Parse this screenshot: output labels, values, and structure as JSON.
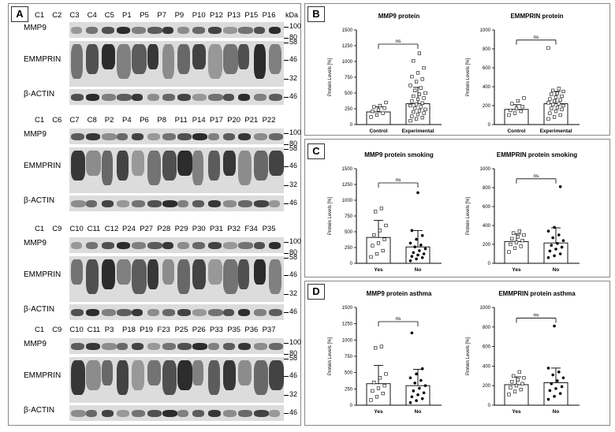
{
  "panels": {
    "a": "A",
    "b": "B",
    "c": "C",
    "d": "D"
  },
  "western_blot": {
    "kda_label": "kDa",
    "blocks": [
      {
        "lanes": [
          "C1",
          "C2",
          "C3",
          "C4",
          "C5",
          "P1",
          "P5",
          "P7",
          "P9",
          "P10",
          "P12",
          "P13",
          "P15",
          "P16"
        ],
        "rows": [
          {
            "label": "MMP9",
            "markers": [
              "100",
              "80"
            ]
          },
          {
            "label": "EMMPRIN",
            "markers": [
              "58",
              "46",
              "32"
            ]
          },
          {
            "label": "β-ACTIN",
            "markers": [
              "46"
            ]
          }
        ]
      },
      {
        "lanes": [
          "C1",
          "C6",
          "C7",
          "C8",
          "P2",
          "P4",
          "P6",
          "P8",
          "P11",
          "P14",
          "P17",
          "P20",
          "P21",
          "P22"
        ],
        "rows": [
          {
            "label": "MMP9",
            "markers": [
              "100",
              "80"
            ]
          },
          {
            "label": "EMMPRIN",
            "markers": [
              "58",
              "46",
              "32"
            ]
          },
          {
            "label": "β-ACTIN",
            "markers": [
              "46"
            ]
          }
        ]
      },
      {
        "lanes": [
          "C1",
          "C9",
          "C10",
          "C11",
          "C12",
          "P24",
          "P27",
          "P28",
          "P29",
          "P30",
          "P31",
          "P32",
          "F34",
          "P35"
        ],
        "rows": [
          {
            "label": "MMP9",
            "markers": [
              "100",
              "80"
            ]
          },
          {
            "label": "EMMPRIN",
            "markers": [
              "58",
              "46",
              "32"
            ]
          },
          {
            "label": "β-ACTIN",
            "markers": [
              "46"
            ]
          }
        ]
      },
      {
        "lanes": [
          "C1",
          "C9",
          "C10",
          "C11",
          "P3",
          "P18",
          "P19",
          "F23",
          "P25",
          "P26",
          "P33",
          "P35",
          "P36",
          "P37"
        ],
        "rows": [
          {
            "label": "MMP9",
            "markers": [
              "100",
              "80"
            ]
          },
          {
            "label": "EMMPRIN",
            "markers": [
              "58",
              "46",
              "32"
            ]
          },
          {
            "label": "β-ACTIN",
            "markers": [
              "46"
            ]
          }
        ]
      }
    ]
  },
  "chart_data": [
    {
      "id": "b1",
      "type": "bar",
      "title": "MMP9 protein",
      "ylabel": "Protein Levels [%]",
      "ylim": [
        0,
        1500
      ],
      "yticks": [
        0,
        250,
        500,
        750,
        1000,
        1250,
        1500
      ],
      "categories": [
        "Control",
        "Experimental"
      ],
      "values": [
        200,
        330
      ],
      "errors": [
        80,
        260
      ],
      "significance": "ns",
      "points": [
        [
          120,
          150,
          180,
          210,
          230,
          260,
          280,
          300,
          350
        ],
        [
          60,
          90,
          110,
          130,
          160,
          180,
          200,
          220,
          240,
          260,
          280,
          300,
          320,
          340,
          370,
          400,
          420,
          450,
          480,
          500,
          540,
          580,
          620,
          680,
          720,
          760,
          820,
          900,
          1010,
          1130
        ]
      ]
    },
    {
      "id": "b2",
      "type": "bar",
      "title": "EMMPRIN protein",
      "ylabel": "Protein Levels [%]",
      "ylim": [
        0,
        1000
      ],
      "yticks": [
        0,
        200,
        400,
        600,
        800,
        1000
      ],
      "categories": [
        "Control",
        "Experimental"
      ],
      "values": [
        160,
        220
      ],
      "errors": [
        50,
        130
      ],
      "significance": "ns",
      "points": [
        [
          100,
          120,
          140,
          150,
          170,
          190,
          220,
          250,
          280
        ],
        [
          60,
          80,
          100,
          120,
          140,
          160,
          170,
          180,
          200,
          210,
          220,
          230,
          250,
          260,
          270,
          290,
          300,
          320,
          330,
          350,
          360,
          380,
          810
        ]
      ]
    },
    {
      "id": "c1",
      "type": "bar",
      "title": "MMP9 protein smoking",
      "ylabel": "Protein Levels [%]",
      "ylim": [
        0,
        1500
      ],
      "yticks": [
        0,
        250,
        500,
        750,
        1000,
        1250,
        1500
      ],
      "categories": [
        "Yes",
        "No"
      ],
      "values": [
        410,
        260
      ],
      "errors": [
        270,
        260
      ],
      "significance": "ns",
      "points": [
        [
          100,
          150,
          200,
          280,
          320,
          380,
          450,
          520,
          600,
          820,
          870
        ],
        [
          40,
          70,
          90,
          110,
          130,
          150,
          170,
          200,
          230,
          260,
          290,
          320,
          380,
          440,
          520,
          1120
        ]
      ]
    },
    {
      "id": "c2",
      "type": "bar",
      "title": "EMMPRIN protein smoking",
      "ylabel": "Protein Levels [%]",
      "ylim": [
        0,
        1000
      ],
      "yticks": [
        0,
        200,
        400,
        600,
        800,
        1000
      ],
      "categories": [
        "Yes",
        "No"
      ],
      "values": [
        230,
        215
      ],
      "errors": [
        80,
        160
      ],
      "significance": "ns",
      "points": [
        [
          120,
          160,
          180,
          200,
          220,
          240,
          260,
          280,
          300,
          320,
          340
        ],
        [
          60,
          80,
          100,
          130,
          150,
          170,
          190,
          210,
          240,
          270,
          300,
          340,
          380,
          810
        ]
      ]
    },
    {
      "id": "d1",
      "type": "bar",
      "title": "MMP9 protein asthma",
      "ylabel": "Protein Levels [%]",
      "ylim": [
        0,
        1500
      ],
      "yticks": [
        0,
        250,
        500,
        750,
        1000,
        1250,
        1500
      ],
      "categories": [
        "Yes",
        "No"
      ],
      "values": [
        330,
        300
      ],
      "errors": [
        280,
        250
      ],
      "significance": "ns",
      "points": [
        [
          80,
          130,
          180,
          220,
          260,
          300,
          350,
          420,
          480,
          880,
          900
        ],
        [
          40,
          70,
          100,
          130,
          160,
          190,
          220,
          260,
          300,
          340,
          380,
          420,
          480,
          560,
          1110
        ]
      ]
    },
    {
      "id": "d2",
      "type": "bar",
      "title": "EMMPRIN protein asthma",
      "ylabel": "Protein Levels [%]",
      "ylim": [
        0,
        1000
      ],
      "yticks": [
        0,
        200,
        400,
        600,
        800,
        1000
      ],
      "categories": [
        "Yes",
        "No"
      ],
      "values": [
        210,
        230
      ],
      "errors": [
        80,
        150
      ],
      "significance": "ns",
      "points": [
        [
          110,
          140,
          160,
          180,
          200,
          220,
          240,
          260,
          280,
          300,
          340
        ],
        [
          60,
          90,
          120,
          150,
          170,
          190,
          220,
          250,
          280,
          310,
          340,
          380,
          810
        ]
      ]
    }
  ]
}
